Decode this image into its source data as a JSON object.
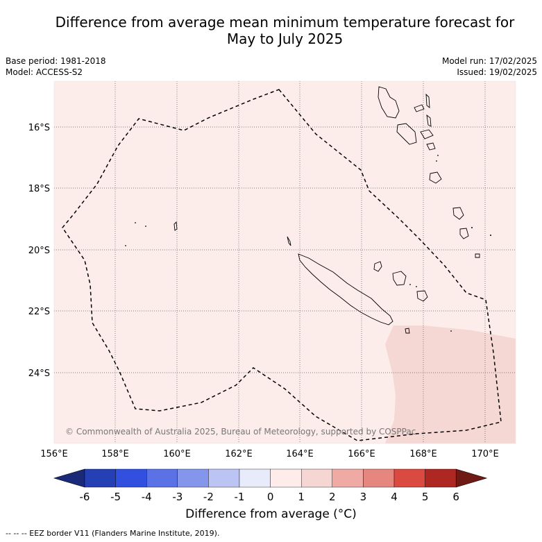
{
  "title_line1": "Difference from average mean minimum temperature forecast for",
  "title_line2": "May to July 2025",
  "base_period": "Base period: 1981-2018",
  "model": "Model: ACCESS-S2",
  "model_run": "Model run: 17/02/2025",
  "issued": "Issued: 19/02/2025",
  "copyright": "© Commonwealth of Australia 2025, Bureau of Meteorology, supported by COSPPac",
  "lon_labels": [
    "156°E",
    "158°E",
    "160°E",
    "162°E",
    "164°E",
    "166°E",
    "168°E",
    "170°E"
  ],
  "lat_labels": [
    "16°S",
    "18°S",
    "20°S",
    "22°S",
    "24°S"
  ],
  "colorbar": {
    "title": "Difference from average (°C)",
    "ticks": [
      "-6",
      "-5",
      "-4",
      "-3",
      "-2",
      "-1",
      "0",
      "1",
      "2",
      "3",
      "4",
      "5",
      "6"
    ],
    "colors": [
      "#1b2a78",
      "#2440b4",
      "#3150e0",
      "#5a72e6",
      "#8496ec",
      "#bcc4f3",
      "#e8ebfa",
      "#fdecea",
      "#f6d6d2",
      "#efaaa3",
      "#e6877f",
      "#da4a40",
      "#ae2722",
      "#701a15"
    ]
  },
  "map_colors": {
    "background_anomaly": "#fcecea",
    "warm_anomaly": "#f5d7d3",
    "land_outline": "#000000"
  },
  "footer": "--  --  -- EEZ border V11 (Flanders Marine Institute, 2019)."
}
